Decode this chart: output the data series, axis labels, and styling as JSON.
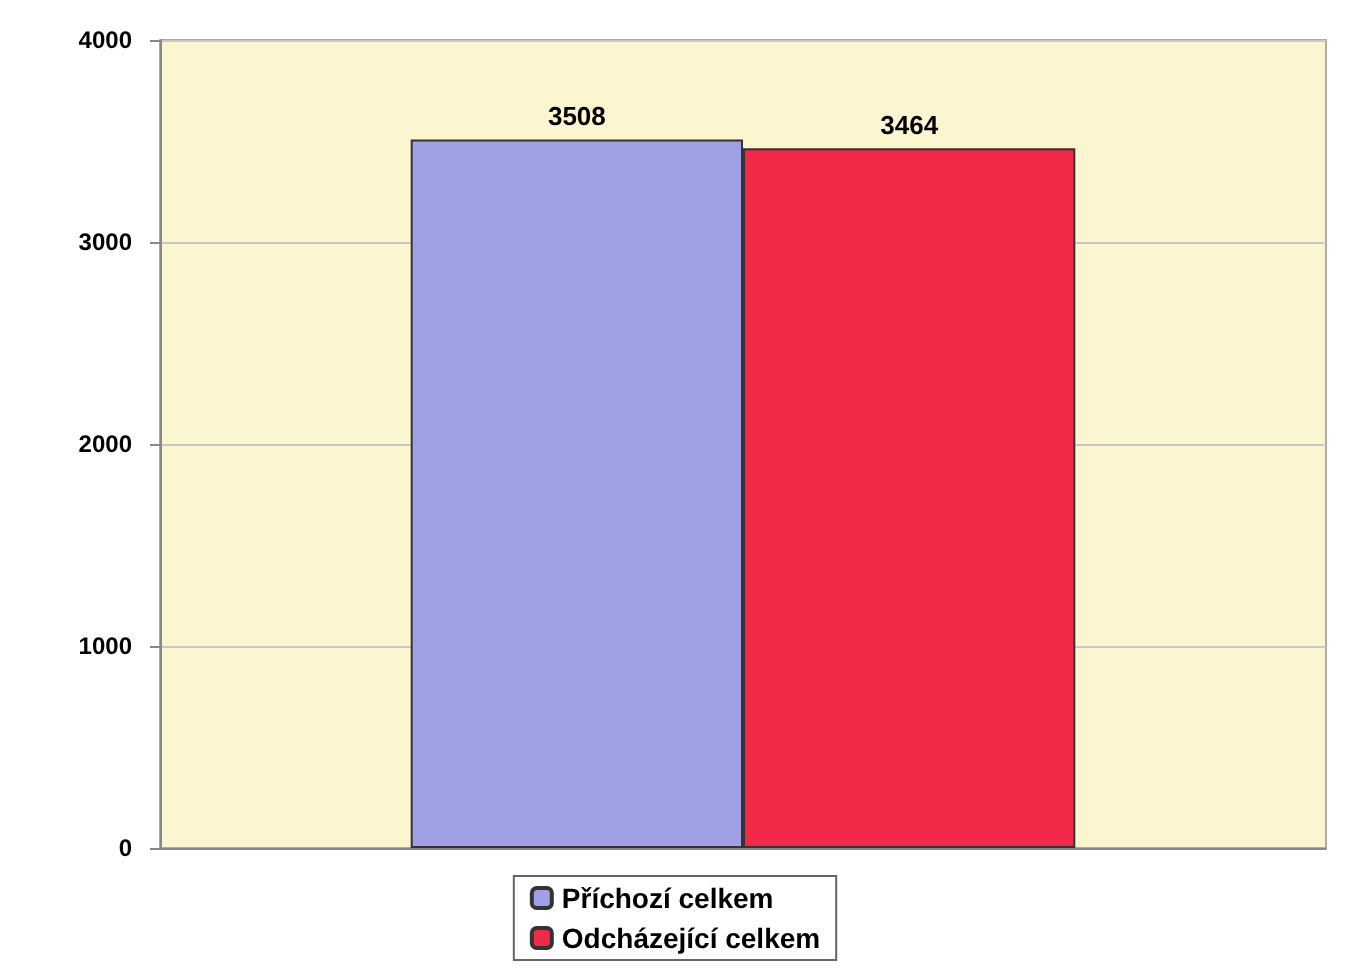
{
  "chart_data": {
    "type": "bar",
    "categories": [
      null
    ],
    "series": [
      {
        "name": "Příchozí celkem",
        "color": "#a0a0e6",
        "values": [
          3508
        ]
      },
      {
        "name": "Odcházející celkem",
        "color": "#f22a48",
        "values": [
          3464
        ]
      }
    ],
    "ylim": [
      0,
      4000
    ],
    "yticks": [
      0,
      1000,
      2000,
      3000,
      4000
    ],
    "grid": "y",
    "legend": "bottom",
    "data_labels": true
  }
}
